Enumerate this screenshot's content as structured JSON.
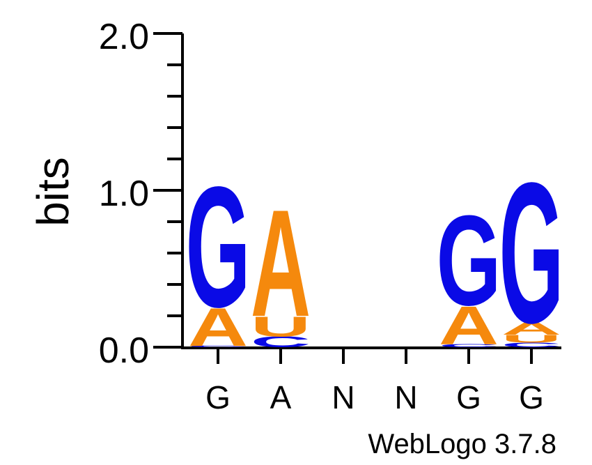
{
  "chart_data": {
    "type": "sequence-logo",
    "ylabel": "bits",
    "ylim": [
      0,
      2.0
    ],
    "yticks": [
      "0.0",
      "1.0",
      "2.0"
    ],
    "positions": [
      "G",
      "A",
      "N",
      "N",
      "G",
      "G"
    ],
    "stacks": [
      [
        {
          "letter": "C",
          "height": 0.01
        },
        {
          "letter": "A",
          "height": 0.25
        },
        {
          "letter": "G",
          "height": 0.79
        }
      ],
      [
        {
          "letter": "C",
          "height": 0.07
        },
        {
          "letter": "U",
          "height": 0.13
        },
        {
          "letter": "A",
          "height": 0.7
        }
      ],
      [],
      [],
      [
        {
          "letter": "C",
          "height": 0.02
        },
        {
          "letter": "A",
          "height": 0.25
        },
        {
          "letter": "G",
          "height": 0.59
        }
      ],
      [
        {
          "letter": "C",
          "height": 0.03
        },
        {
          "letter": "U",
          "height": 0.05
        },
        {
          "letter": "A",
          "height": 0.08
        },
        {
          "letter": "G",
          "height": 0.92
        }
      ]
    ],
    "colors": {
      "G": "#0a0ae6",
      "C": "#0a0ae6",
      "A": "#f5890d",
      "U": "#f5890d"
    }
  },
  "credit": "WebLogo 3.7.8"
}
